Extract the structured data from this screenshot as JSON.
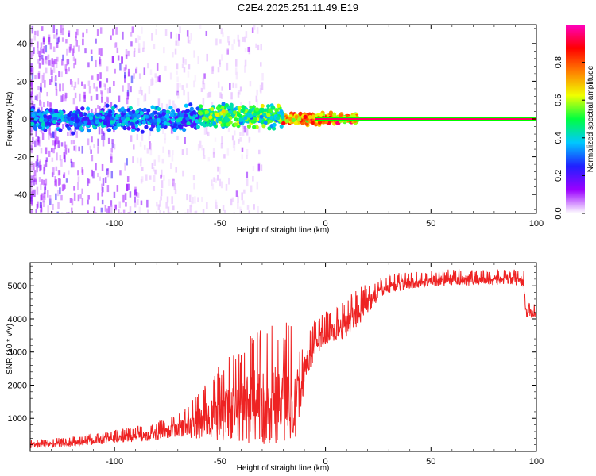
{
  "title": "C2E4.2025.251.11.49.E19",
  "chart_data": [
    {
      "type": "heatmap",
      "name": "spectrogram",
      "xlabel": "Height of straight line (km)",
      "ylabel": "Frequency (Hz)",
      "xlim": [
        -140,
        100
      ],
      "ylim": [
        -50,
        50
      ],
      "xticks": [
        -100,
        -50,
        0,
        50,
        100
      ],
      "yticks": [
        -40,
        -20,
        0,
        20,
        40
      ],
      "xtick_labels": [
        "-100",
        "-50",
        "0",
        "50",
        "100"
      ],
      "ytick_labels": [
        "-40",
        "-20",
        "0",
        "20",
        "40"
      ],
      "colorbar": {
        "label": "Normalized spectral amplitude",
        "range": [
          0,
          1
        ],
        "ticks": [
          0,
          0.2,
          0.4,
          0.6,
          0.8
        ],
        "tick_labels": [
          "0.0",
          "0.2",
          "0.4",
          "0.6",
          "0.8"
        ],
        "colors": [
          "#ffffff",
          "#9b00ff",
          "#2020ff",
          "#00c8ff",
          "#00ff40",
          "#f0ff00",
          "#ff8000",
          "#ff0000",
          "#ff00c0"
        ]
      },
      "features": {
        "main_band_freq_hz": 0,
        "main_band_halfwidth_hz": 5,
        "noise_region_xmax_km": -90,
        "carrier_line_start_km": 15,
        "carrier_line_colors": [
          "#000000",
          "#00ff00",
          "#ff0000",
          "#ff00ff"
        ]
      }
    },
    {
      "type": "line",
      "name": "snr",
      "xlabel": "Height of straight line (km)",
      "ylabel": "SNR (10 * v/v)",
      "xlim": [
        -140,
        100
      ],
      "ylim": [
        0,
        5700
      ],
      "xticks": [
        -100,
        -50,
        0,
        50,
        100
      ],
      "yticks": [
        1000,
        2000,
        3000,
        4000,
        5000
      ],
      "xtick_labels": [
        "-100",
        "-50",
        "0",
        "50",
        "100"
      ],
      "ytick_labels": [
        "1000",
        "2000",
        "3000",
        "4000",
        "5000"
      ],
      "series": [
        {
          "name": "SNR",
          "color": "#ee2222",
          "trend": {
            "x": [
              -140,
              -120,
              -100,
              -80,
              -70,
              -60,
              -50,
              -40,
              -30,
              -20,
              -12,
              -10,
              -5,
              0,
              5,
              10,
              15,
              20,
              25,
              30,
              40,
              50,
              60,
              70,
              80,
              90,
              94,
              95,
              100
            ],
            "y": [
              200,
              250,
              400,
              550,
              700,
              900,
              1200,
              1400,
              1600,
              1700,
              1800,
              2500,
              3300,
              3600,
              3700,
              3900,
              4200,
              4500,
              4800,
              5000,
              5100,
              5150,
              5200,
              5200,
              5200,
              5200,
              5150,
              4200,
              4200
            ]
          },
          "noise_amplitude": {
            "x": [
              -140,
              -100,
              -70,
              -50,
              -30,
              -15,
              -10,
              0,
              15,
              25,
              40,
              95,
              100
            ],
            "y": [
              100,
              150,
              250,
              900,
              1400,
              1500,
              500,
              400,
              450,
              250,
              200,
              180,
              150
            ]
          },
          "samples": 1400
        }
      ]
    }
  ]
}
